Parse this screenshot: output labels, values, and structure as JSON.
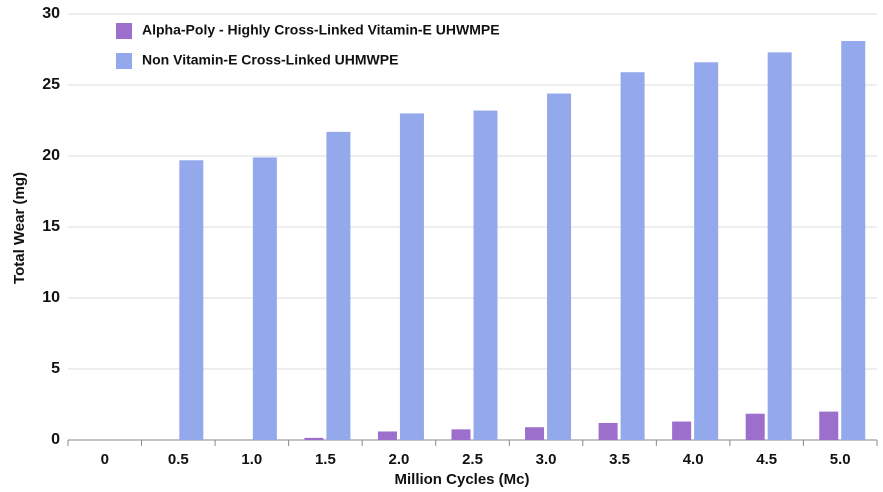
{
  "chart_data": {
    "type": "bar",
    "x_label": "Million Cycles (Mc)",
    "y_label": "Total Wear (mg)",
    "categories": [
      "0",
      "0.5",
      "1.0",
      "1.5",
      "2.0",
      "2.5",
      "3.0",
      "3.5",
      "4.0",
      "4.5",
      "5.0"
    ],
    "series": [
      {
        "name": "Alpha-Poly - Highly Cross-Linked Vitamin-E UHWMPE",
        "color": "#9b6fcb",
        "values": [
          0,
          0,
          0,
          0.15,
          0.6,
          0.75,
          0.9,
          1.2,
          1.3,
          1.85,
          2.0
        ]
      },
      {
        "name": "Non Vitamin-E Cross-Linked UHMWPE",
        "color": "#94a8ec",
        "values": [
          0,
          19.7,
          19.9,
          21.7,
          23.0,
          23.2,
          24.4,
          25.9,
          26.6,
          27.3,
          28.1
        ]
      }
    ],
    "ylim": [
      0,
      30
    ],
    "yticks": [
      0,
      5,
      10,
      15,
      20,
      25,
      30
    ],
    "grid": true,
    "legend": "top-left"
  }
}
